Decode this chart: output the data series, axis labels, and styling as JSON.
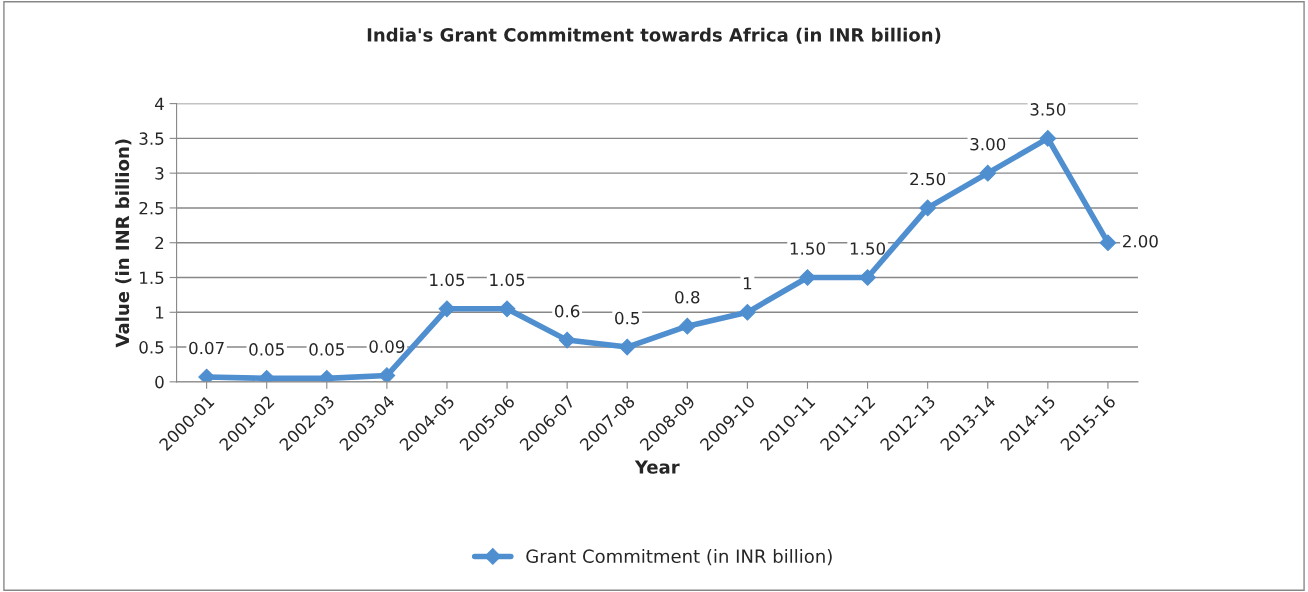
{
  "chart_data": {
    "type": "line",
    "title": "India's Grant Commitment towards Africa (in INR billion)",
    "xlabel": "Year",
    "ylabel": "Value (in INR billion)",
    "categories": [
      "2000-01",
      "2001-02",
      "2002-03",
      "2003-04",
      "2004-05",
      "2005-06",
      "2006-07",
      "2007-08",
      "2008-09",
      "2009-10",
      "2010-11",
      "2011-12",
      "2012-13",
      "2013-14",
      "2014-15",
      "2015-16"
    ],
    "series": [
      {
        "name": "Grant Commitment (in INR billion)",
        "color": "#4f8fd0",
        "values": [
          0.07,
          0.05,
          0.05,
          0.09,
          1.05,
          1.05,
          0.6,
          0.5,
          0.8,
          1,
          1.5,
          1.5,
          2.5,
          3.0,
          3.5,
          2.0
        ],
        "value_labels": [
          "0.07",
          "0.05",
          "0.05",
          "0.09",
          "1.05",
          "1.05",
          "0.6",
          "0.5",
          "0.8",
          "1",
          "1.50",
          "1.50",
          "2.50",
          "3.00",
          "3.50",
          "2.00"
        ]
      }
    ],
    "ylim": [
      0,
      4
    ],
    "yticks": [
      0,
      0.5,
      1,
      1.5,
      2,
      2.5,
      3,
      3.5,
      4
    ],
    "grid": "y",
    "legend": "bottom",
    "marker": "diamond",
    "line_style": "solid"
  }
}
